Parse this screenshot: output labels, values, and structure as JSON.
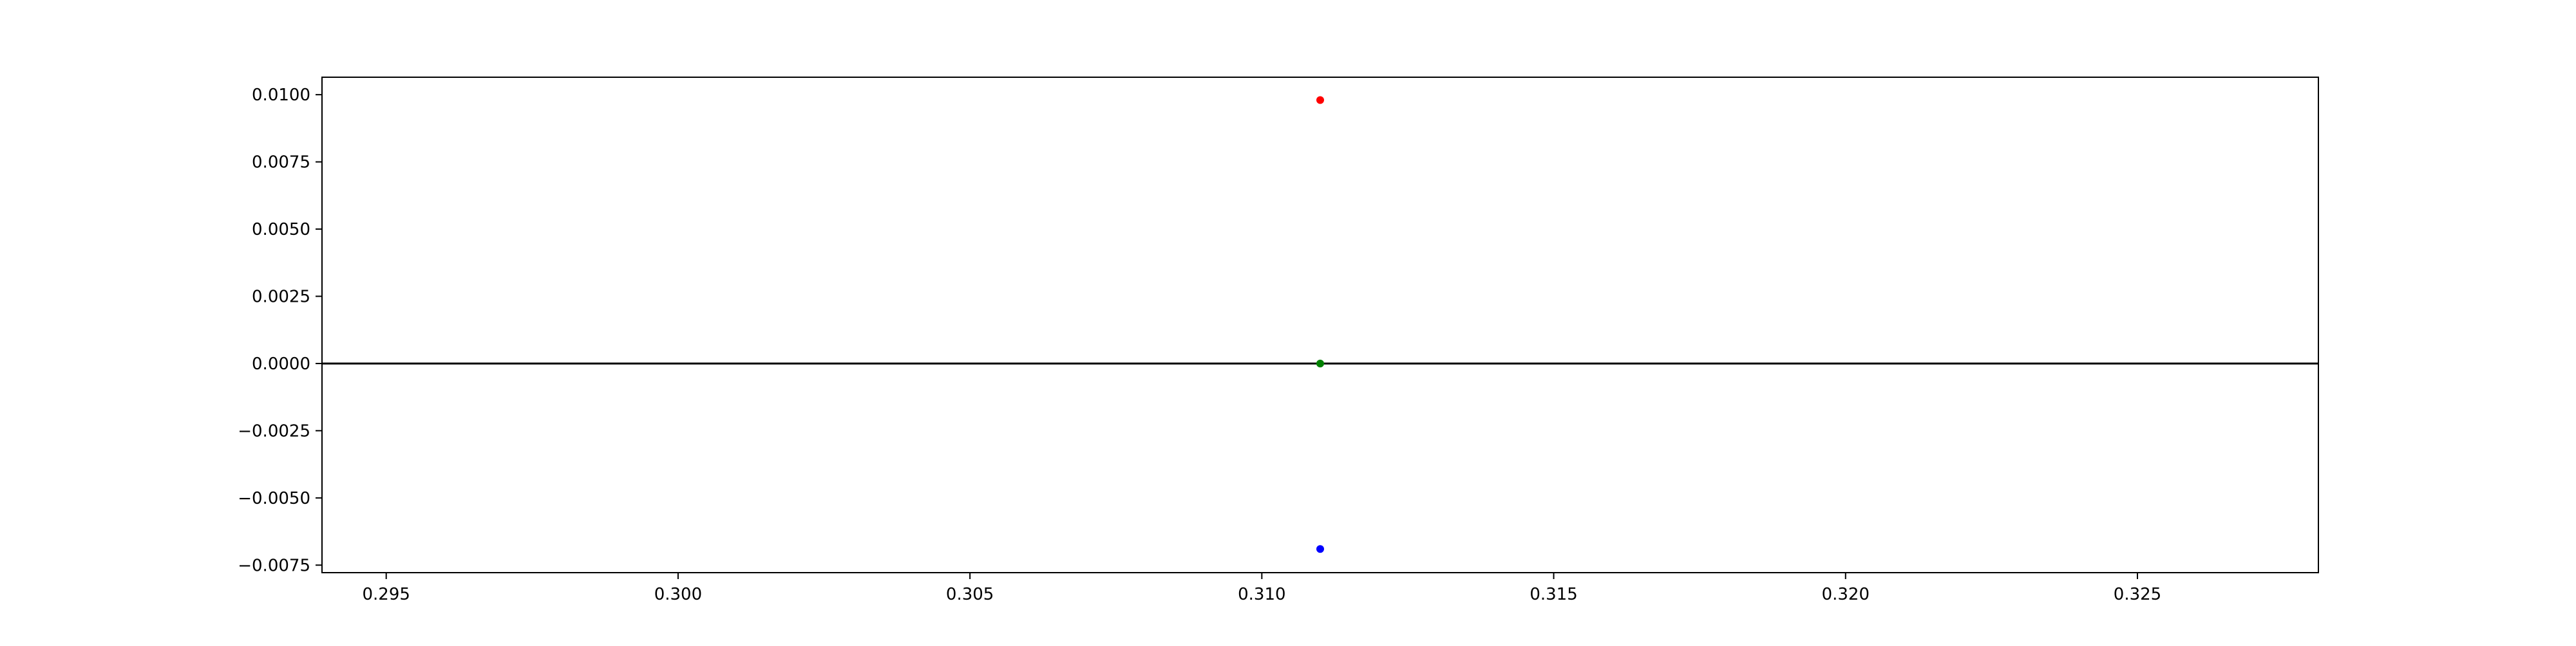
{
  "chart_data": {
    "type": "scatter",
    "title": "",
    "xlabel": "",
    "ylabel": "",
    "xlim": [
      0.2939,
      0.3281
    ],
    "ylim": [
      -0.00778,
      0.01065
    ],
    "grid": false,
    "x_ticks": [
      {
        "value": 0.295,
        "label": "0.295"
      },
      {
        "value": 0.3,
        "label": "0.300"
      },
      {
        "value": 0.305,
        "label": "0.305"
      },
      {
        "value": 0.31,
        "label": "0.310"
      },
      {
        "value": 0.315,
        "label": "0.315"
      },
      {
        "value": 0.32,
        "label": "0.320"
      },
      {
        "value": 0.325,
        "label": "0.325"
      }
    ],
    "y_ticks": [
      {
        "value": 0.01,
        "label": "0.0100"
      },
      {
        "value": 0.0075,
        "label": "0.0075"
      },
      {
        "value": 0.005,
        "label": "0.0050"
      },
      {
        "value": 0.0025,
        "label": "0.0025"
      },
      {
        "value": 0.0,
        "label": "0.0000"
      },
      {
        "value": -0.0025,
        "label": "−0.0025"
      },
      {
        "value": -0.005,
        "label": "−0.0050"
      },
      {
        "value": -0.0075,
        "label": "−0.0075"
      }
    ],
    "reference_lines": [
      {
        "orientation": "horizontal",
        "y": 0.0,
        "color": "#000000"
      }
    ],
    "points": [
      {
        "x": 0.311,
        "y": 0.0098,
        "color": "#ff0000"
      },
      {
        "x": 0.311,
        "y": 0.0,
        "color": "#008000"
      },
      {
        "x": 0.311,
        "y": -0.0069,
        "color": "#0000ff"
      }
    ]
  }
}
